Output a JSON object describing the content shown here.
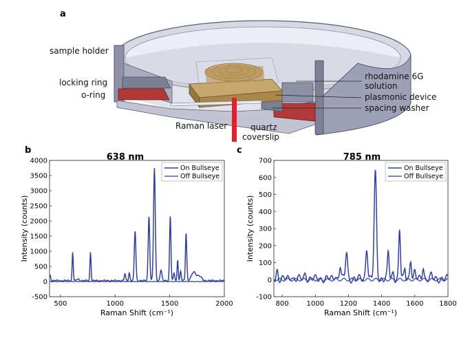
{
  "figure": {
    "panel_letters": [
      "a",
      "b",
      "c"
    ],
    "diagram_labels": {
      "sample_holder": "sample holder",
      "locking_ring": "locking ring",
      "o_ring": "o-ring",
      "raman_laser": "Raman laser",
      "rhodamine_line1": "rhodamine 6G",
      "rhodamine_line2": "solution",
      "plasmonic_device": "plasmonic device",
      "spacing_washer": "spacing washer",
      "quartz_line1": "quartz",
      "quartz_line2": "coverslip"
    },
    "colors": {
      "holder": "#9ea0b8",
      "holder_dark": "#6e7088",
      "oring": "#b03a3a",
      "device": "#b89a62",
      "laser": "#e0202a",
      "series_on": "#2f3f9e",
      "series_off": "#4a5cb8"
    }
  },
  "chart_data": [
    {
      "type": "line",
      "title": "638 nm",
      "xlabel": "Raman Shift (cm⁻¹)",
      "ylabel": "Intensity (counts)",
      "xlim": [
        400,
        2000
      ],
      "ylim": [
        -500,
        4000
      ],
      "xticks": [
        500,
        1000,
        1500,
        2000
      ],
      "yticks": [
        -500,
        0,
        500,
        1000,
        1500,
        2000,
        2500,
        3000,
        3500,
        4000
      ],
      "legend_position": "top-right",
      "series": [
        {
          "name": "On Bullseye",
          "baseline": 30,
          "peaks": [
            {
              "x": 405,
              "h": 180,
              "w": 6
            },
            {
              "x": 612,
              "h": 950,
              "w": 5
            },
            {
              "x": 660,
              "h": 60,
              "w": 8
            },
            {
              "x": 775,
              "h": 950,
              "w": 5
            },
            {
              "x": 1090,
              "h": 220,
              "w": 6
            },
            {
              "x": 1130,
              "h": 250,
              "w": 6
            },
            {
              "x": 1183,
              "h": 1650,
              "w": 7
            },
            {
              "x": 1310,
              "h": 2150,
              "w": 7
            },
            {
              "x": 1360,
              "h": 3700,
              "w": 8
            },
            {
              "x": 1420,
              "h": 350,
              "w": 8
            },
            {
              "x": 1505,
              "h": 2150,
              "w": 6
            },
            {
              "x": 1540,
              "h": 250,
              "w": 6
            },
            {
              "x": 1573,
              "h": 700,
              "w": 5
            },
            {
              "x": 1600,
              "h": 300,
              "w": 6
            },
            {
              "x": 1650,
              "h": 1600,
              "w": 6
            },
            {
              "x": 1720,
              "h": 280,
              "w": 20
            },
            {
              "x": 1770,
              "h": 150,
              "w": 20
            }
          ]
        },
        {
          "name": "Off Bullseye",
          "baseline": 0,
          "peaks": []
        }
      ]
    },
    {
      "type": "line",
      "title": "785 nm",
      "xlabel": "Raman Shift (cm⁻¹)",
      "ylabel": "Intensity (counts)",
      "xlim": [
        750,
        1800
      ],
      "ylim": [
        -100,
        700
      ],
      "xticks": [
        800,
        1000,
        1200,
        1400,
        1600,
        1800
      ],
      "yticks": [
        -100,
        0,
        100,
        200,
        300,
        400,
        500,
        600,
        700
      ],
      "legend_position": "top-right",
      "series": [
        {
          "name": "On Bullseye",
          "baseline": 5,
          "peaks": [
            {
              "x": 770,
              "h": 50,
              "w": 5
            },
            {
              "x": 855,
              "h": 20,
              "w": 5
            },
            {
              "x": 940,
              "h": 30,
              "w": 6
            },
            {
              "x": 1120,
              "h": 25,
              "w": 5
            },
            {
              "x": 1150,
              "h": 80,
              "w": 5
            },
            {
              "x": 1188,
              "h": 155,
              "w": 6
            },
            {
              "x": 1310,
              "h": 185,
              "w": 6
            },
            {
              "x": 1362,
              "h": 620,
              "w": 7
            },
            {
              "x": 1440,
              "h": 160,
              "w": 5
            },
            {
              "x": 1470,
              "h": 40,
              "w": 5
            },
            {
              "x": 1508,
              "h": 295,
              "w": 5
            },
            {
              "x": 1540,
              "h": 60,
              "w": 4
            },
            {
              "x": 1575,
              "h": 120,
              "w": 5
            },
            {
              "x": 1600,
              "h": 40,
              "w": 5
            },
            {
              "x": 1650,
              "h": 75,
              "w": 5
            },
            {
              "x": 1700,
              "h": 20,
              "w": 5
            }
          ]
        },
        {
          "name": "Off Bullseye",
          "baseline": 0,
          "peaks": []
        }
      ]
    }
  ]
}
